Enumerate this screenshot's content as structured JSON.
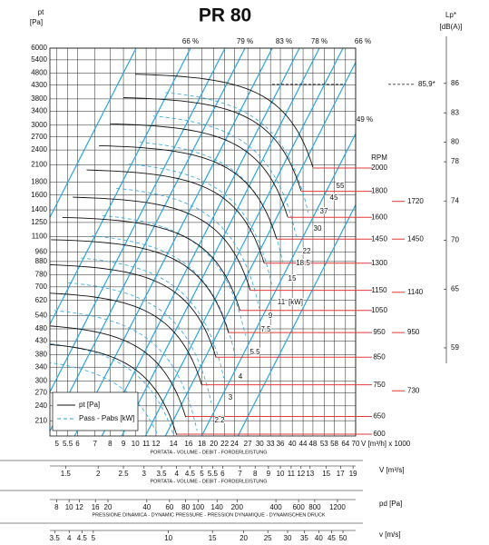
{
  "chart_data": {
    "type": "fan-curve",
    "title": "PR 80",
    "y_label": "pt",
    "y_unit": "[Pa]",
    "log_scale": true,
    "grid": true,
    "ylim": [
      183,
      6000
    ],
    "yticks": [
      6000,
      5400,
      4800,
      4300,
      3800,
      3400,
      3000,
      2700,
      2400,
      2100,
      1800,
      1600,
      1400,
      1250,
      1100,
      960,
      880,
      780,
      700,
      620,
      540,
      480,
      430,
      380,
      340,
      300,
      270,
      240,
      210
    ],
    "xlim": [
      4.7,
      70
    ],
    "xticks": [
      5,
      5.5,
      6,
      7,
      8,
      9,
      10,
      11,
      12,
      14,
      16,
      18,
      20,
      22,
      24,
      27,
      30,
      33,
      36,
      40,
      44,
      48,
      53,
      58,
      64,
      70
    ],
    "x_label": "V [m³/h] x 1000",
    "x_caption": "PORTATA - VOLUME - DEBIT - FORDERLEISTUNG",
    "secondary_axes": [
      {
        "label": "V [m³/s]",
        "caption": "PORTATA - VOLUME - DEBIT - FORDERLEISTUNG",
        "xlim": [
          1.306,
          19.44
        ],
        "xticks": [
          1.5,
          2,
          2.5,
          3,
          3.5,
          4,
          4.5,
          5,
          5.5,
          6,
          7,
          8,
          9,
          10,
          11,
          12,
          13,
          15,
          17,
          19
        ]
      },
      {
        "label": "pd [Pa]",
        "caption": "PRESSIONE DINAMICA - DYNAMIC PRESSURE - PRESSION DYNAMIQUE - DYNAMISCHEN DRUCK",
        "xlim": [
          7.1,
          1660
        ],
        "xticks": [
          8,
          10,
          12,
          16,
          20,
          40,
          60,
          80,
          100,
          140,
          200,
          400,
          600,
          800,
          1200
        ]
      },
      {
        "label": "v [m/s]",
        "xlim": [
          3.35,
          56.2
        ],
        "xticks": [
          3.5,
          4,
          4.5,
          5,
          10,
          15,
          20,
          25,
          30,
          35,
          40,
          45,
          50
        ]
      }
    ],
    "rpm_axis": {
      "label": "RPM",
      "lim": [
        595,
        3440
      ],
      "ticks": [
        2000,
        1800,
        1600,
        1450,
        1300,
        1150,
        1050,
        950,
        850,
        750,
        650,
        600
      ],
      "color": "#e23a3a"
    },
    "noise_axis": {
      "label": "Lp*",
      "unit": "[dB(A)]",
      "lim": [
        50,
        89.6
      ],
      "ticks": [
        86,
        83,
        80,
        78,
        74,
        70,
        65,
        59
      ],
      "marker": {
        "value": 85.9,
        "label": "85,9*"
      },
      "rpm_marks": [
        1720,
        1450,
        1140,
        950,
        730
      ]
    },
    "efficiency_labels": [
      "66 %",
      "79 %",
      "83 %",
      "78 %",
      "66 %",
      "49 %"
    ],
    "power_labels": [
      "2.2",
      "3",
      "4",
      "5.5",
      "7.5",
      "9",
      "11",
      "15",
      "18.5",
      "22",
      "30",
      "37",
      "45",
      "55"
    ],
    "power_unit": "[kW]",
    "legend": [
      "pt [Pa]",
      "Pass - Pabs [kW]"
    ],
    "curve_color": "#111111",
    "system_color": "#2aa6dd"
  }
}
